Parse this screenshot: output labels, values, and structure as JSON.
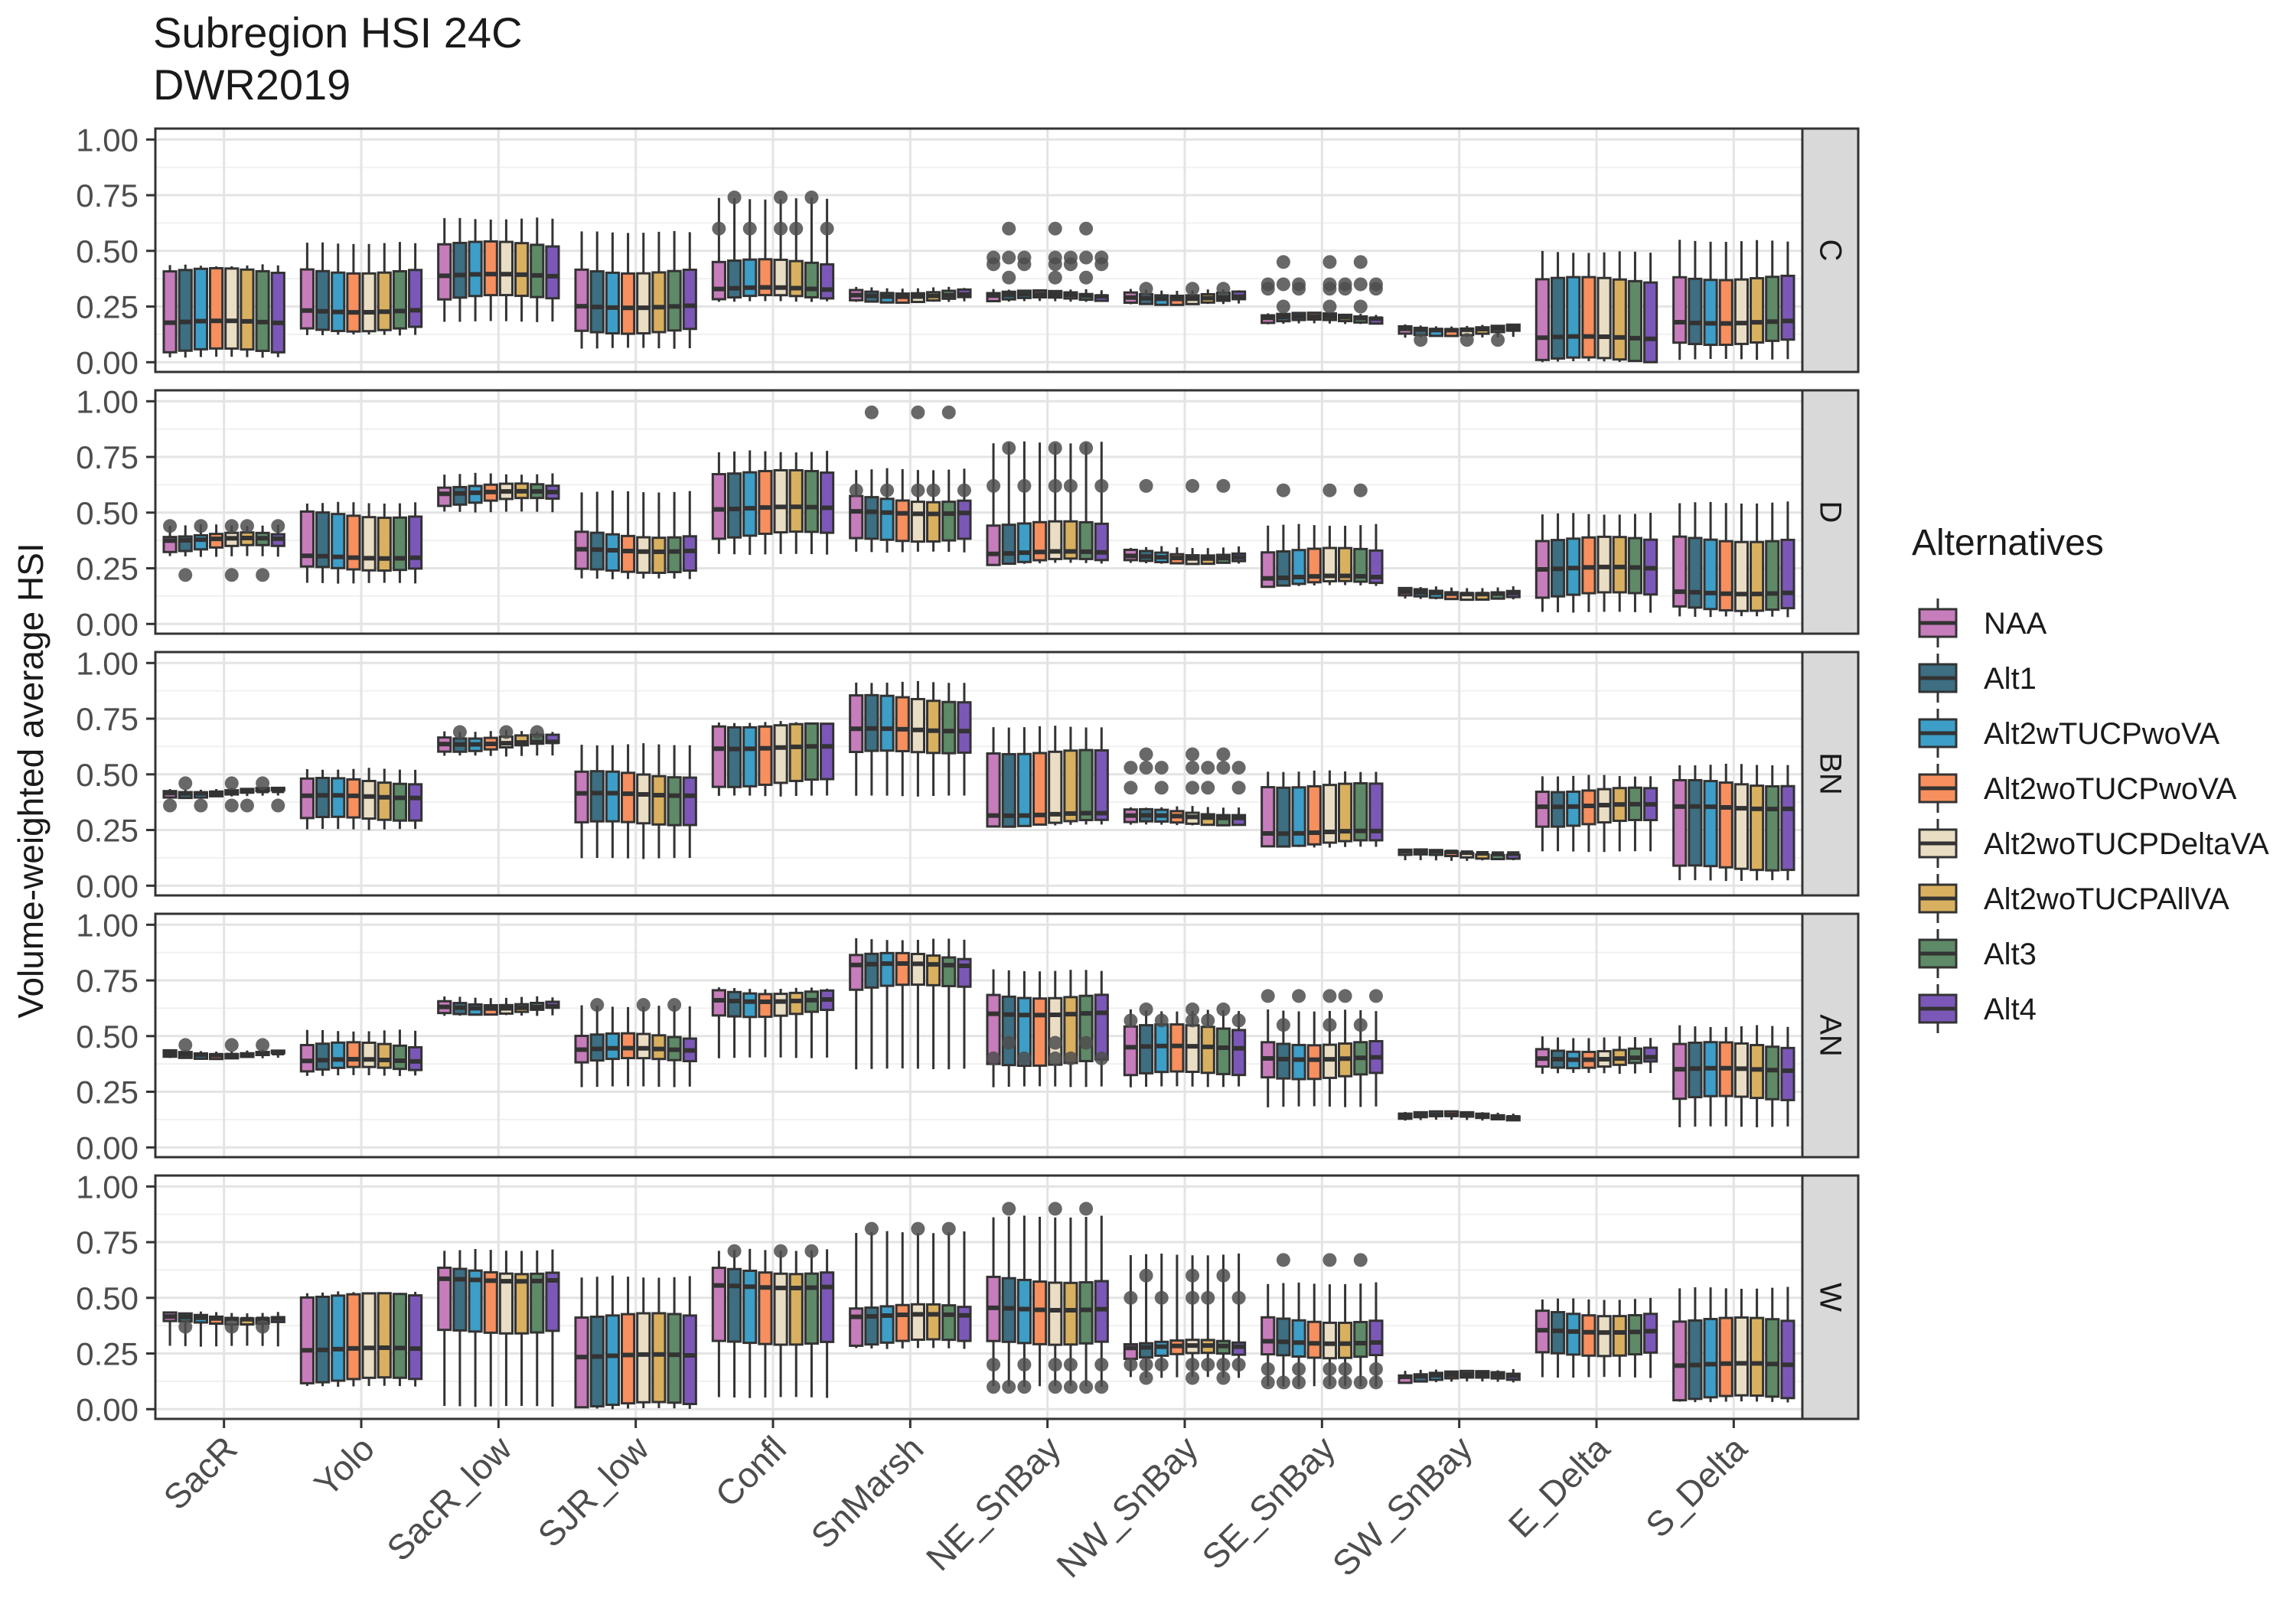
{
  "chart_data": {
    "type": "boxplot",
    "title": "Subregion HSI 24C",
    "subtitle": "DWR2019",
    "ylabel": "Volume-weighted average HSI",
    "xlabel": "",
    "ylim": [
      0,
      1
    ],
    "y_ticks": [
      "0.00",
      "0.25",
      "0.50",
      "0.75",
      "1.00"
    ],
    "grid": true,
    "legend_position": "right",
    "categories": [
      "SacR",
      "Yolo",
      "SacR_low",
      "SJR_low",
      "Confl",
      "SnMarsh",
      "NE_SnBay",
      "NW_SnBay",
      "SE_SnBay",
      "SW_SnBay",
      "E_Delta",
      "S_Delta"
    ],
    "legend": {
      "title": "Alternatives",
      "series": [
        {
          "name": "NAA",
          "color": "#C77CBB"
        },
        {
          "name": "Alt1",
          "color": "#3D6E82"
        },
        {
          "name": "Alt2wTUCPwoVA",
          "color": "#3D9EC7"
        },
        {
          "name": "Alt2woTUCPwoVA",
          "color": "#F78F5E"
        },
        {
          "name": "Alt2woTUCPDeltaVA",
          "color": "#E9DDC4"
        },
        {
          "name": "Alt2woTUCPAllVA",
          "color": "#D9B05F"
        },
        {
          "name": "Alt3",
          "color": "#5E8A67"
        },
        {
          "name": "Alt4",
          "color": "#7B58B8"
        }
      ]
    },
    "panels": [
      {
        "label": "C",
        "groups": [
          {
            "w": [
              0.02,
              0.44
            ],
            "box": [
              0.05,
              0.18,
              0.41
            ]
          },
          {
            "w": [
              0.12,
              0.54
            ],
            "box": [
              0.15,
              0.23,
              0.41
            ]
          },
          {
            "w": [
              0.18,
              0.65
            ],
            "box": [
              0.29,
              0.39,
              0.53
            ]
          },
          {
            "w": [
              0.06,
              0.59
            ],
            "box": [
              0.14,
              0.25,
              0.41
            ]
          },
          {
            "w": [
              0.27,
              0.74
            ],
            "box": [
              0.29,
              0.33,
              0.45
            ],
            "out": [
              0.74,
              0.6
            ]
          },
          {
            "w": [
              0.27,
              0.34
            ],
            "box": [
              0.28,
              0.3,
              0.32
            ]
          },
          {
            "w": [
              0.27,
              0.33
            ],
            "box": [
              0.28,
              0.3,
              0.31
            ],
            "out": [
              0.38,
              0.44,
              0.47,
              0.6
            ]
          },
          {
            "w": [
              0.26,
              0.33
            ],
            "box": [
              0.27,
              0.29,
              0.31
            ],
            "out": [
              0.33
            ]
          },
          {
            "w": [
              0.17,
              0.22
            ],
            "box": [
              0.18,
              0.2,
              0.21
            ],
            "out": [
              0.25,
              0.33,
              0.35,
              0.45
            ]
          },
          {
            "w": [
              0.11,
              0.17
            ],
            "box": [
              0.13,
              0.15,
              0.16
            ],
            "out": [
              0.1
            ]
          },
          {
            "w": [
              0.0,
              0.5
            ],
            "box": [
              0.01,
              0.11,
              0.37
            ]
          },
          {
            "w": [
              0.01,
              0.55
            ],
            "box": [
              0.09,
              0.18,
              0.38
            ]
          }
        ]
      },
      {
        "label": "D",
        "groups": [
          {
            "w": [
              0.3,
              0.45
            ],
            "box": [
              0.34,
              0.38,
              0.4
            ],
            "out": [
              0.22,
              0.44
            ]
          },
          {
            "w": [
              0.18,
              0.55
            ],
            "box": [
              0.25,
              0.3,
              0.49
            ]
          },
          {
            "w": [
              0.5,
              0.68
            ],
            "box": [
              0.55,
              0.59,
              0.62
            ]
          },
          {
            "w": [
              0.2,
              0.6
            ],
            "box": [
              0.24,
              0.33,
              0.4
            ]
          },
          {
            "w": [
              0.31,
              0.78
            ],
            "box": [
              0.4,
              0.52,
              0.68
            ]
          },
          {
            "w": [
              0.32,
              0.7
            ],
            "box": [
              0.38,
              0.5,
              0.56
            ],
            "out": [
              0.95,
              0.6
            ]
          },
          {
            "w": [
              0.27,
              0.82
            ],
            "box": [
              0.28,
              0.32,
              0.45
            ],
            "out": [
              0.79,
              0.62
            ]
          },
          {
            "w": [
              0.27,
              0.35
            ],
            "box": [
              0.28,
              0.3,
              0.32
            ],
            "out": [
              0.62
            ]
          },
          {
            "w": [
              0.17,
              0.45
            ],
            "box": [
              0.18,
              0.21,
              0.33
            ],
            "out": [
              0.6
            ]
          },
          {
            "w": [
              0.11,
              0.17
            ],
            "box": [
              0.12,
              0.14,
              0.15
            ]
          },
          {
            "w": [
              0.05,
              0.5
            ],
            "box": [
              0.13,
              0.25,
              0.38
            ]
          },
          {
            "w": [
              0.03,
              0.55
            ],
            "box": [
              0.07,
              0.14,
              0.38
            ]
          }
        ]
      },
      {
        "label": "BN",
        "groups": [
          {
            "w": [
              0.4,
              0.44
            ],
            "box": [
              0.41,
              0.42,
              0.43
            ],
            "out": [
              0.46,
              0.36
            ]
          },
          {
            "w": [
              0.25,
              0.53
            ],
            "box": [
              0.3,
              0.4,
              0.47
            ]
          },
          {
            "w": [
              0.58,
              0.7
            ],
            "box": [
              0.62,
              0.64,
              0.67
            ],
            "out": [
              0.69
            ]
          },
          {
            "w": [
              0.12,
              0.64
            ],
            "box": [
              0.28,
              0.41,
              0.5
            ]
          },
          {
            "w": [
              0.4,
              0.74
            ],
            "box": [
              0.46,
              0.62,
              0.72
            ]
          },
          {
            "w": [
              0.4,
              0.92
            ],
            "box": [
              0.6,
              0.7,
              0.84
            ]
          },
          {
            "w": [
              0.27,
              0.72
            ],
            "box": [
              0.28,
              0.32,
              0.6
            ]
          },
          {
            "w": [
              0.27,
              0.36
            ],
            "box": [
              0.28,
              0.31,
              0.33
            ],
            "out": [
              0.59,
              0.44,
              0.53
            ]
          },
          {
            "w": [
              0.17,
              0.52
            ],
            "box": [
              0.19,
              0.24,
              0.45
            ]
          },
          {
            "w": [
              0.11,
              0.16
            ],
            "box": [
              0.13,
              0.15,
              0.15
            ]
          },
          {
            "w": [
              0.15,
              0.5
            ],
            "box": [
              0.28,
              0.36,
              0.43
            ]
          },
          {
            "w": [
              0.02,
              0.55
            ],
            "box": [
              0.08,
              0.35,
              0.46
            ]
          }
        ]
      },
      {
        "label": "AN",
        "groups": [
          {
            "w": [
              0.4,
              0.44
            ],
            "box": [
              0.41,
              0.42,
              0.43
            ],
            "out": [
              0.46
            ]
          },
          {
            "w": [
              0.32,
              0.53
            ],
            "box": [
              0.35,
              0.39,
              0.46
            ]
          },
          {
            "w": [
              0.59,
              0.68
            ],
            "box": [
              0.61,
              0.63,
              0.65
            ]
          },
          {
            "w": [
              0.27,
              0.64
            ],
            "box": [
              0.39,
              0.44,
              0.5
            ],
            "out": [
              0.64
            ]
          },
          {
            "w": [
              0.4,
              0.72
            ],
            "box": [
              0.6,
              0.66,
              0.7
            ]
          },
          {
            "w": [
              0.35,
              0.94
            ],
            "box": [
              0.72,
              0.82,
              0.86
            ]
          },
          {
            "w": [
              0.27,
              0.8
            ],
            "box": [
              0.38,
              0.6,
              0.68
            ],
            "out": [
              0.47,
              0.4
            ]
          },
          {
            "w": [
              0.27,
              0.62
            ],
            "box": [
              0.33,
              0.45,
              0.54
            ],
            "out": [
              0.62,
              0.57
            ]
          },
          {
            "w": [
              0.18,
              0.62
            ],
            "box": [
              0.32,
              0.4,
              0.47
            ],
            "out": [
              0.55,
              0.68
            ]
          },
          {
            "w": [
              0.12,
              0.16
            ],
            "box": [
              0.13,
              0.14,
              0.15
            ]
          },
          {
            "w": [
              0.33,
              0.5
            ],
            "box": [
              0.37,
              0.4,
              0.44
            ]
          },
          {
            "w": [
              0.09,
              0.55
            ],
            "box": [
              0.22,
              0.35,
              0.46
            ]
          }
        ]
      },
      {
        "label": "W",
        "groups": [
          {
            "w": [
              0.28,
              0.44
            ],
            "box": [
              0.39,
              0.41,
              0.42
            ],
            "out": [
              0.37
            ]
          },
          {
            "w": [
              0.1,
              0.53
            ],
            "box": [
              0.13,
              0.27,
              0.51
            ]
          },
          {
            "w": [
              0.01,
              0.72
            ],
            "box": [
              0.35,
              0.58,
              0.62
            ]
          },
          {
            "w": [
              0.0,
              0.6
            ],
            "box": [
              0.02,
              0.24,
              0.42
            ]
          },
          {
            "w": [
              0.05,
              0.72
            ],
            "box": [
              0.3,
              0.55,
              0.62
            ],
            "out": [
              0.71
            ]
          },
          {
            "w": [
              0.27,
              0.8
            ],
            "box": [
              0.3,
              0.42,
              0.46
            ],
            "out": [
              0.81
            ]
          },
          {
            "w": [
              0.1,
              0.87
            ],
            "box": [
              0.3,
              0.45,
              0.58
            ],
            "out": [
              0.9,
              0.2,
              0.1
            ]
          },
          {
            "w": [
              0.14,
              0.7
            ],
            "box": [
              0.24,
              0.28,
              0.3
            ],
            "out": [
              0.6,
              0.5,
              0.2,
              0.14
            ]
          },
          {
            "w": [
              0.1,
              0.57
            ],
            "box": [
              0.24,
              0.3,
              0.4
            ],
            "out": [
              0.67,
              0.18,
              0.12
            ]
          },
          {
            "w": [
              0.12,
              0.18
            ],
            "box": [
              0.13,
              0.15,
              0.16
            ]
          },
          {
            "w": [
              0.14,
              0.5
            ],
            "box": [
              0.25,
              0.35,
              0.43
            ]
          },
          {
            "w": [
              0.03,
              0.55
            ],
            "box": [
              0.05,
              0.2,
              0.4
            ]
          }
        ]
      }
    ]
  }
}
